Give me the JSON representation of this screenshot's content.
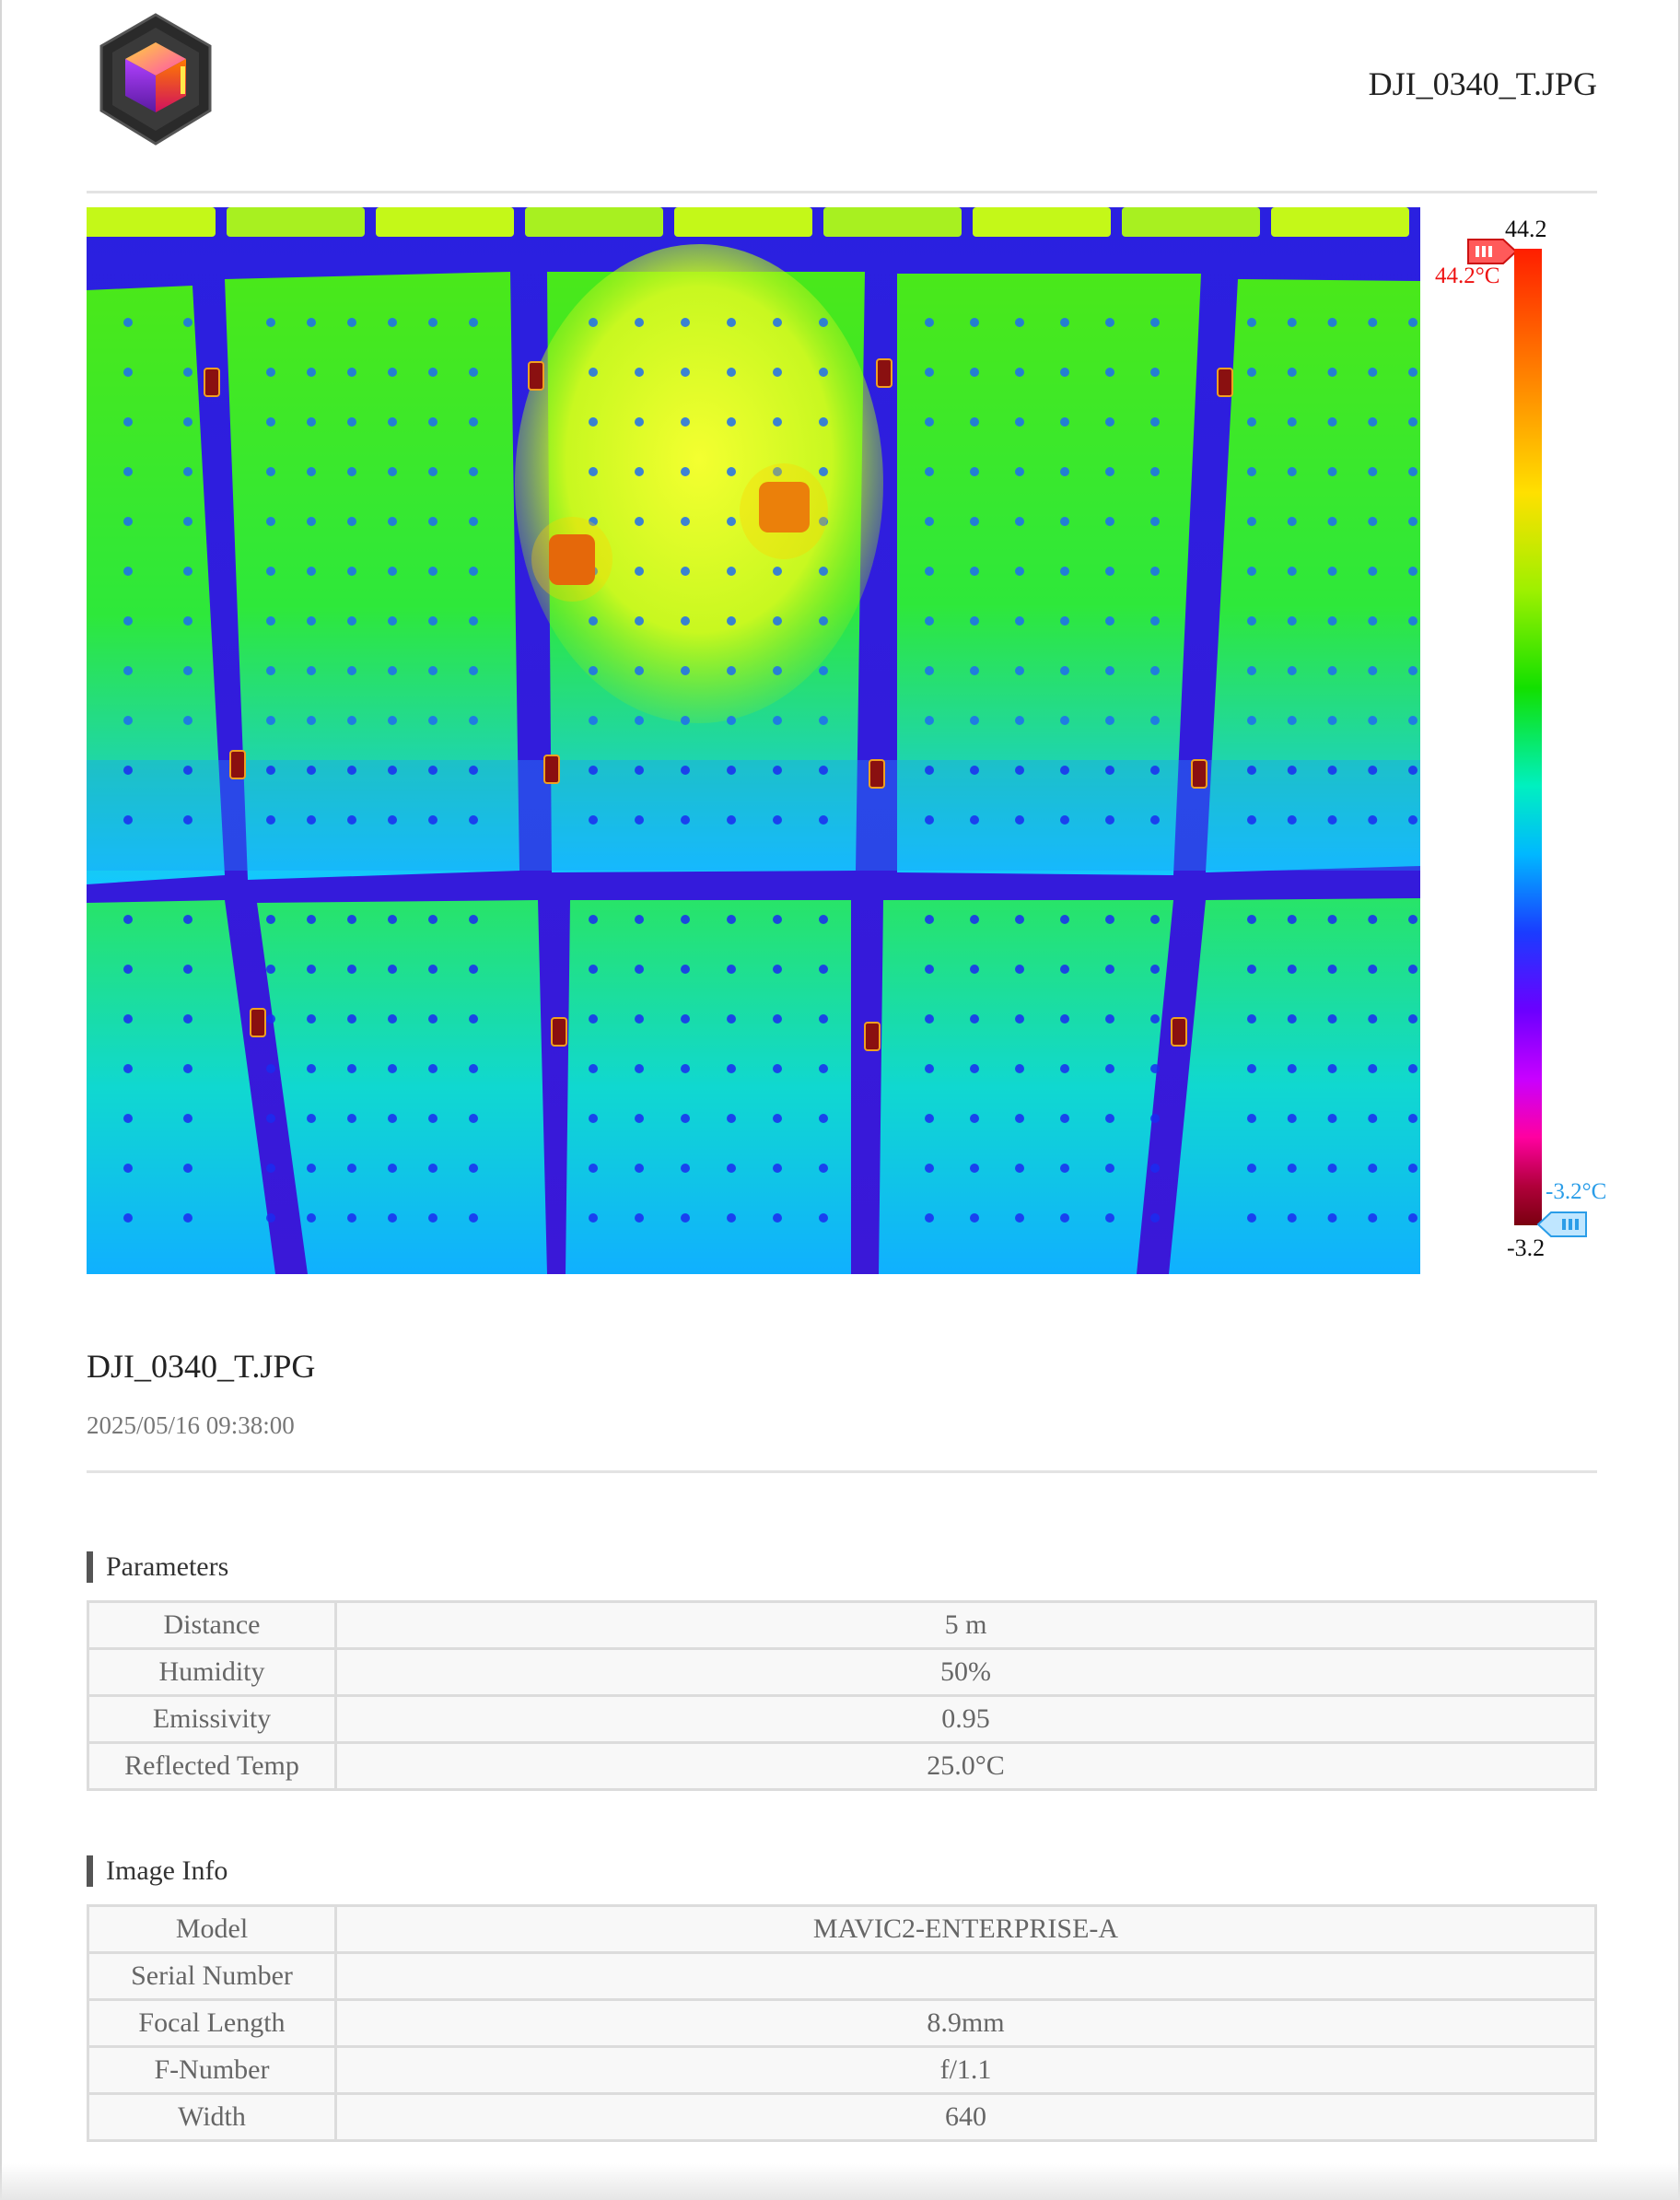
{
  "header": {
    "title": "DJI_0340_T.JPG"
  },
  "logo": {
    "icon": "cube-logo-icon"
  },
  "thermal": {
    "image": "thermal-infrared-image",
    "palette": "iron-rainbow"
  },
  "scale": {
    "max_value": "44.2",
    "min_value": "-3.2",
    "max_marker_label": "44.2°C",
    "min_marker_label": "-3.2°C",
    "hi_color": "#ee2222",
    "lo_color": "#2a9de8"
  },
  "file": {
    "name": "DJI_0340_T.JPG",
    "datetime": "2025/05/16 09:38:00"
  },
  "parameters": {
    "title": "Parameters",
    "rows": [
      {
        "label": "Distance",
        "value": "5 m"
      },
      {
        "label": "Humidity",
        "value": "50%"
      },
      {
        "label": "Emissivity",
        "value": "0.95"
      },
      {
        "label": "Reflected Temp",
        "value": "25.0°C"
      }
    ]
  },
  "image_info": {
    "title": "Image Info",
    "rows": [
      {
        "label": "Model",
        "value": "MAVIC2-ENTERPRISE-A"
      },
      {
        "label": "Serial Number",
        "value": ""
      },
      {
        "label": "Focal Length",
        "value": "8.9mm"
      },
      {
        "label": "F-Number",
        "value": "f/1.1"
      },
      {
        "label": "Width",
        "value": "640"
      }
    ]
  }
}
